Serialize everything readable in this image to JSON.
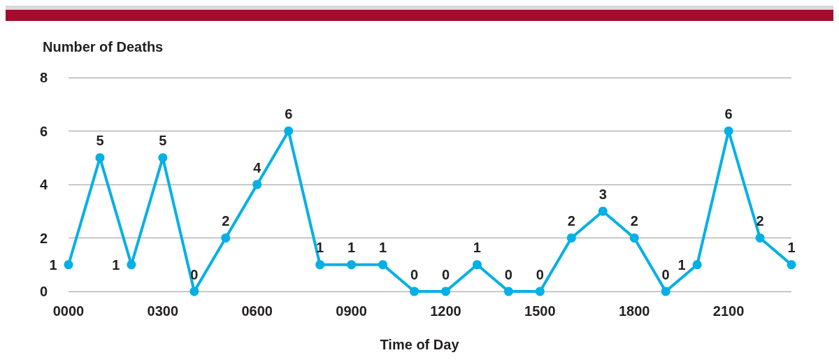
{
  "chart_data": {
    "type": "line",
    "ylabel": "Number of Deaths",
    "xlabel": "Time of Day",
    "categories": [
      "0000",
      null,
      null,
      "0300",
      null,
      null,
      "0600",
      null,
      null,
      "0900",
      null,
      null,
      "1200",
      null,
      null,
      "1500",
      null,
      null,
      "1800",
      null,
      null,
      "2100",
      null,
      null
    ],
    "series": [
      {
        "color": "#00b0e6",
        "values": [
          1,
          5,
          1,
          5,
          0,
          2,
          4,
          6,
          1,
          1,
          1,
          0,
          0,
          1,
          0,
          0,
          2,
          3,
          2,
          0,
          1,
          6,
          2,
          1
        ]
      }
    ],
    "ylim": [
      0,
      8
    ],
    "yticks": [
      0,
      2,
      4,
      6,
      8
    ],
    "grid": "y",
    "data_labels": true,
    "marker": "circle",
    "line_style": "solid"
  }
}
